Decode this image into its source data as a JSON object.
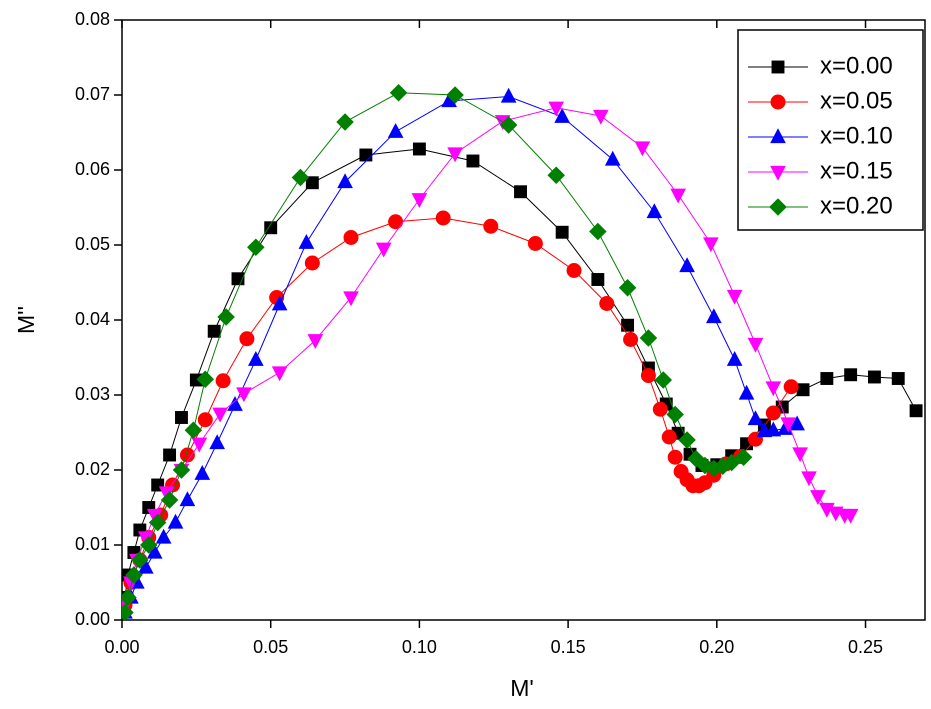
{
  "chart_data": {
    "type": "line",
    "x_label": "M'",
    "y_label": "M''",
    "xlim": [
      0,
      0.27
    ],
    "ylim": [
      0,
      0.08
    ],
    "xticks": [
      {
        "value": 0,
        "label": "0.00"
      },
      {
        "value": 0.05,
        "label": "0.05"
      },
      {
        "value": 0.1,
        "label": "0.10"
      },
      {
        "value": 0.15,
        "label": "0.15"
      },
      {
        "value": 0.2,
        "label": "0.20"
      },
      {
        "value": 0.25,
        "label": "0.25"
      }
    ],
    "yticks": [
      {
        "value": 0,
        "label": "0.00"
      },
      {
        "value": 0.01,
        "label": "0.01"
      },
      {
        "value": 0.02,
        "label": "0.02"
      },
      {
        "value": 0.03,
        "label": "0.03"
      },
      {
        "value": 0.04,
        "label": "0.04"
      },
      {
        "value": 0.05,
        "label": "0.05"
      },
      {
        "value": 0.06,
        "label": "0.06"
      },
      {
        "value": 0.07,
        "label": "0.07"
      },
      {
        "value": 0.08,
        "label": "0.08"
      }
    ],
    "legend": "top-right",
    "series": [
      {
        "name": "x=0.00",
        "color": "#000000",
        "marker": "square",
        "x": [
          0.001,
          0.002,
          0.004,
          0.006,
          0.009,
          0.012,
          0.016,
          0.02,
          0.025,
          0.031,
          0.039,
          0.05,
          0.064,
          0.082,
          0.1,
          0.118,
          0.134,
          0.148,
          0.16,
          0.17,
          0.177,
          0.183,
          0.187,
          0.191,
          0.195,
          0.2,
          0.205,
          0.21,
          0.216,
          0.222,
          0.229,
          0.237,
          0.245,
          0.253,
          0.261,
          0.267
        ],
        "values": [
          0.003,
          0.006,
          0.009,
          0.012,
          0.015,
          0.018,
          0.022,
          0.027,
          0.032,
          0.0385,
          0.0455,
          0.0523,
          0.0583,
          0.062,
          0.0628,
          0.0612,
          0.0571,
          0.0517,
          0.0454,
          0.0393,
          0.0336,
          0.0288,
          0.0249,
          0.0221,
          0.0206,
          0.0207,
          0.0219,
          0.0235,
          0.026,
          0.0284,
          0.0307,
          0.0322,
          0.0327,
          0.0324,
          0.0322,
          0.0279
        ]
      },
      {
        "name": "x=0.05",
        "color": "#ff0000",
        "marker": "circle",
        "x": [
          0.001,
          0.003,
          0.006,
          0.009,
          0.013,
          0.017,
          0.022,
          0.028,
          0.034,
          0.042,
          0.052,
          0.064,
          0.077,
          0.092,
          0.108,
          0.124,
          0.139,
          0.152,
          0.163,
          0.171,
          0.177,
          0.181,
          0.184,
          0.186,
          0.188,
          0.19,
          0.192,
          0.194,
          0.196,
          0.199,
          0.203,
          0.208,
          0.213,
          0.219,
          0.225
        ],
        "values": [
          0.002,
          0.005,
          0.008,
          0.011,
          0.014,
          0.018,
          0.022,
          0.0267,
          0.0319,
          0.0375,
          0.043,
          0.0476,
          0.051,
          0.0531,
          0.0536,
          0.0525,
          0.0502,
          0.0466,
          0.0422,
          0.0374,
          0.0326,
          0.0281,
          0.0244,
          0.0217,
          0.0198,
          0.0187,
          0.0179,
          0.0179,
          0.0183,
          0.0193,
          0.0208,
          0.0218,
          0.0241,
          0.0276,
          0.0311
        ]
      },
      {
        "name": "x=0.10",
        "color": "#0000ff",
        "marker": "triangle-up",
        "x": [
          0.001,
          0.003,
          0.005,
          0.008,
          0.011,
          0.014,
          0.018,
          0.022,
          0.027,
          0.032,
          0.038,
          0.045,
          0.053,
          0.062,
          0.075,
          0.092,
          0.11,
          0.13,
          0.148,
          0.165,
          0.179,
          0.19,
          0.199,
          0.206,
          0.21,
          0.213,
          0.216,
          0.219,
          0.223,
          0.227
        ],
        "values": [
          0.001,
          0.003,
          0.005,
          0.007,
          0.009,
          0.011,
          0.013,
          0.016,
          0.0195,
          0.0236,
          0.0287,
          0.0347,
          0.0421,
          0.0503,
          0.0584,
          0.0651,
          0.0692,
          0.0698,
          0.0671,
          0.0614,
          0.0544,
          0.0472,
          0.0404,
          0.0347,
          0.0302,
          0.0268,
          0.0252,
          0.0253,
          0.0255,
          0.0261
        ]
      },
      {
        "name": "x=0.15",
        "color": "#ff00ff",
        "marker": "triangle-down",
        "x": [
          0.001,
          0.003,
          0.005,
          0.008,
          0.011,
          0.015,
          0.02,
          0.026,
          0.033,
          0.041,
          0.053,
          0.065,
          0.077,
          0.088,
          0.1,
          0.112,
          0.128,
          0.146,
          0.161,
          0.175,
          0.187,
          0.198,
          0.206,
          0.213,
          0.219,
          0.224,
          0.228,
          0.231,
          0.234,
          0.237,
          0.24,
          0.243,
          0.245
        ],
        "values": [
          0.002,
          0.005,
          0.008,
          0.011,
          0.014,
          0.017,
          0.02,
          0.0235,
          0.0275,
          0.0302,
          0.033,
          0.0373,
          0.043,
          0.0495,
          0.0561,
          0.0622,
          0.0665,
          0.0683,
          0.0672,
          0.063,
          0.0567,
          0.0502,
          0.0432,
          0.0368,
          0.031,
          0.0262,
          0.0222,
          0.019,
          0.0165,
          0.0148,
          0.0143,
          0.014,
          0.014
        ]
      },
      {
        "name": "x=0.20",
        "color": "#008000",
        "marker": "diamond",
        "x": [
          0.001,
          0.002,
          0.004,
          0.006,
          0.009,
          0.012,
          0.016,
          0.02,
          0.024,
          0.028,
          0.035,
          0.045,
          0.06,
          0.075,
          0.093,
          0.112,
          0.13,
          0.146,
          0.16,
          0.17,
          0.177,
          0.182,
          0.186,
          0.19,
          0.193,
          0.196,
          0.199,
          0.202,
          0.205,
          0.209
        ],
        "values": [
          0.001,
          0.003,
          0.006,
          0.008,
          0.01,
          0.013,
          0.016,
          0.02,
          0.0253,
          0.0321,
          0.0404,
          0.0497,
          0.059,
          0.0664,
          0.0703,
          0.07,
          0.066,
          0.0593,
          0.0518,
          0.0443,
          0.0376,
          0.032,
          0.0274,
          0.024,
          0.0215,
          0.0206,
          0.0202,
          0.0205,
          0.021,
          0.0217
        ]
      }
    ]
  }
}
